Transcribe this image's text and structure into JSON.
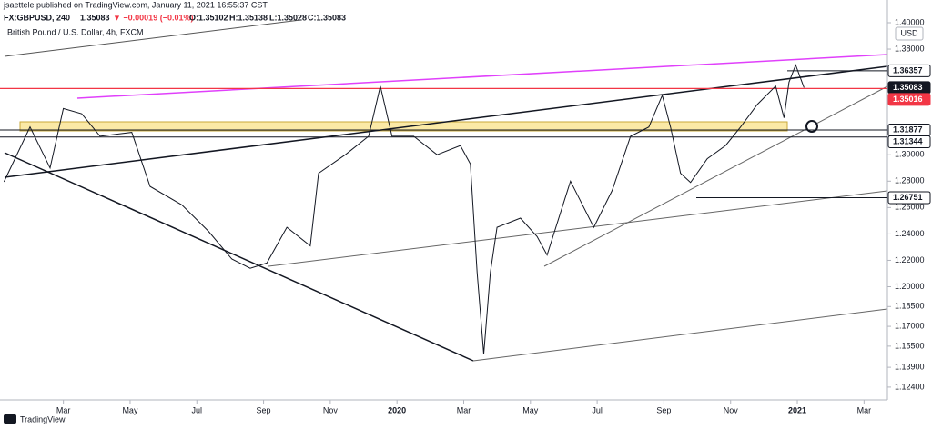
{
  "header": {
    "publisher": "jsaettele published on TradingView.com, January 11, 2021 16:55:37 CST",
    "symbol": "FX:GBPUSD, 240",
    "last": "1.35083",
    "change": "▼ −0.00019 (−0.01%)",
    "open": "O:1.35102",
    "high": "H:1.35138",
    "low": "L:1.35028",
    "close": "C:1.35083",
    "currency": "USD",
    "brand": "TradingView"
  },
  "chart_data": {
    "type": "line",
    "title": "British Pound / U.S. Dollar, 4h, FXCM",
    "color": "#131722",
    "x": [
      0.22,
      1.0,
      1.6,
      2.0,
      2.55,
      3.1,
      4.05,
      4.6,
      5.55,
      6.35,
      7.05,
      7.6,
      8.1,
      8.7,
      9.4,
      9.65,
      10.45,
      11.15,
      11.5,
      11.85,
      12.5,
      13.2,
      13.9,
      14.2,
      14.4,
      14.6,
      14.8,
      15.0,
      15.7,
      16.2,
      16.5,
      17.2,
      17.9,
      18.45,
      19.0,
      19.55,
      19.95,
      20.2,
      20.5,
      20.8,
      21.3,
      21.85,
      22.3,
      22.8,
      23.35,
      23.6,
      23.75,
      23.95,
      24.2
    ],
    "values": [
      1.2795,
      1.321,
      1.29,
      1.335,
      1.331,
      1.314,
      1.317,
      1.276,
      1.262,
      1.242,
      1.221,
      1.214,
      1.218,
      1.245,
      1.231,
      1.286,
      1.3,
      1.314,
      1.352,
      1.314,
      1.314,
      1.3,
      1.307,
      1.293,
      1.211,
      1.149,
      1.211,
      1.245,
      1.252,
      1.238,
      1.224,
      1.28,
      1.245,
      1.273,
      1.314,
      1.321,
      1.345,
      1.321,
      1.286,
      1.279,
      1.297,
      1.307,
      1.321,
      1.338,
      1.352,
      1.328,
      1.355,
      1.368,
      1.35083
    ],
    "xlim": [
      0.1,
      26.7
    ],
    "xticks": [
      {
        "value": 2,
        "label": "Mar"
      },
      {
        "value": 4,
        "label": "May"
      },
      {
        "value": 6,
        "label": "Jul"
      },
      {
        "value": 8,
        "label": "Sep"
      },
      {
        "value": 10,
        "label": "Nov"
      },
      {
        "value": 12,
        "label": "2020"
      },
      {
        "value": 14,
        "label": "Mar"
      },
      {
        "value": 16,
        "label": "May"
      },
      {
        "value": 18,
        "label": "Jul"
      },
      {
        "value": 20,
        "label": "Sep"
      },
      {
        "value": 22,
        "label": "Nov"
      },
      {
        "value": 24,
        "label": "2021"
      },
      {
        "value": 26,
        "label": "Mar"
      }
    ],
    "ylim": [
      1.1143,
      1.4172
    ],
    "yticks": [
      {
        "value": 1.124,
        "label": "1.12400"
      },
      {
        "value": 1.139,
        "label": "1.13900"
      },
      {
        "value": 1.155,
        "label": "1.15500"
      },
      {
        "value": 1.17,
        "label": "1.17000"
      },
      {
        "value": 1.185,
        "label": "1.18500"
      },
      {
        "value": 1.2,
        "label": "1.20000"
      },
      {
        "value": 1.22,
        "label": "1.22000"
      },
      {
        "value": 1.24,
        "label": "1.24000"
      },
      {
        "value": 1.26,
        "label": "1.26000"
      },
      {
        "value": 1.28,
        "label": "1.28000"
      },
      {
        "value": 1.3,
        "label": "1.30000"
      },
      {
        "value": 1.38,
        "label": "1.38000"
      },
      {
        "value": 1.4,
        "label": "1.40000"
      }
    ],
    "levels": [
      {
        "value": 1.36357,
        "color": "#131722",
        "fill": "#ffffff"
      },
      {
        "value": 1.35083,
        "color": "#ffffff",
        "fill": "#131722"
      },
      {
        "value": 1.35016,
        "color": "#ffffff",
        "fill": "#f23645"
      },
      {
        "value": 1.31877,
        "color": "#131722",
        "fill": "#ffffff"
      },
      {
        "value": 1.31344,
        "color": "#131722",
        "fill": "#ffffff"
      },
      {
        "value": 1.26751,
        "color": "#131722",
        "fill": "#ffffff"
      }
    ]
  }
}
